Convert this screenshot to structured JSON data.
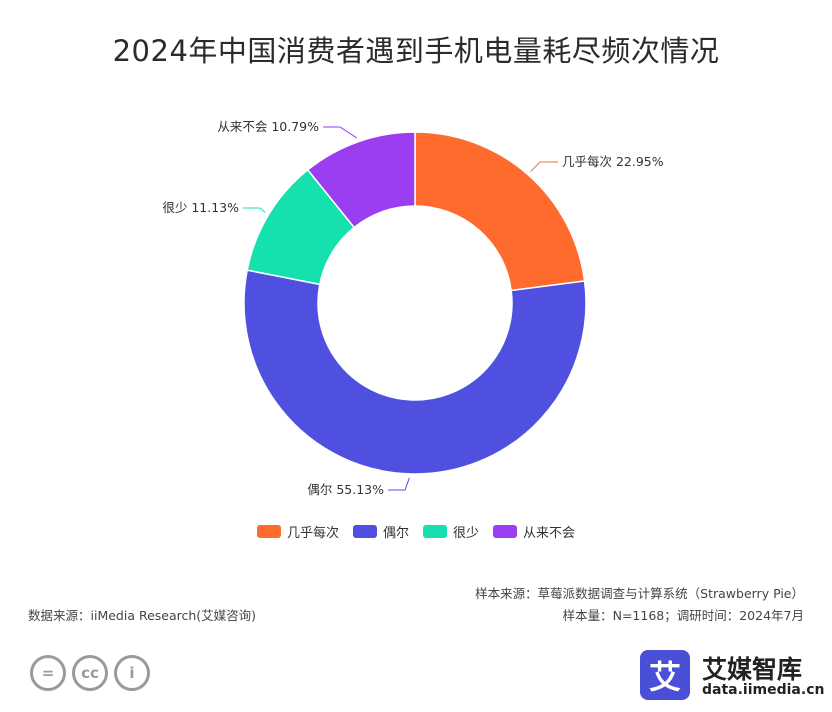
{
  "title": "2024年中国消费者遇到手机电量耗尽频次情况",
  "chart_data": {
    "type": "pie",
    "variant": "donut",
    "title": "2024年中国消费者遇到手机电量耗尽频次情况",
    "categories": [
      "几乎每次",
      "偶尔",
      "很少",
      "从来不会"
    ],
    "values": [
      22.95,
      55.13,
      11.13,
      10.79
    ],
    "labels": [
      "几乎每次 22.95%",
      "偶尔 55.13%",
      "很少 11.13%",
      "从来不会 10.79%"
    ],
    "colors": [
      "#ff6b2d",
      "#5050e0",
      "#14e1ad",
      "#9b3df0"
    ],
    "legend_position": "bottom"
  },
  "legend": [
    "几乎每次",
    "偶尔",
    "很少",
    "从来不会"
  ],
  "notes": {
    "sample_source": "样本来源：草莓派数据调查与计算系统（Strawberry Pie）",
    "sample_count": "样本量：N=1168；调研时间：2024年7月",
    "data_source": "数据来源：iiMedia Research(艾媒咨询)"
  },
  "license_icons": [
    "equals-icon",
    "cc-icon",
    "person-icon"
  ],
  "license_glyphs": [
    "=",
    "cc",
    "i"
  ],
  "logo": {
    "glyph": "艾",
    "name": "艾媒智库",
    "url": "data.iimedia.cn"
  }
}
